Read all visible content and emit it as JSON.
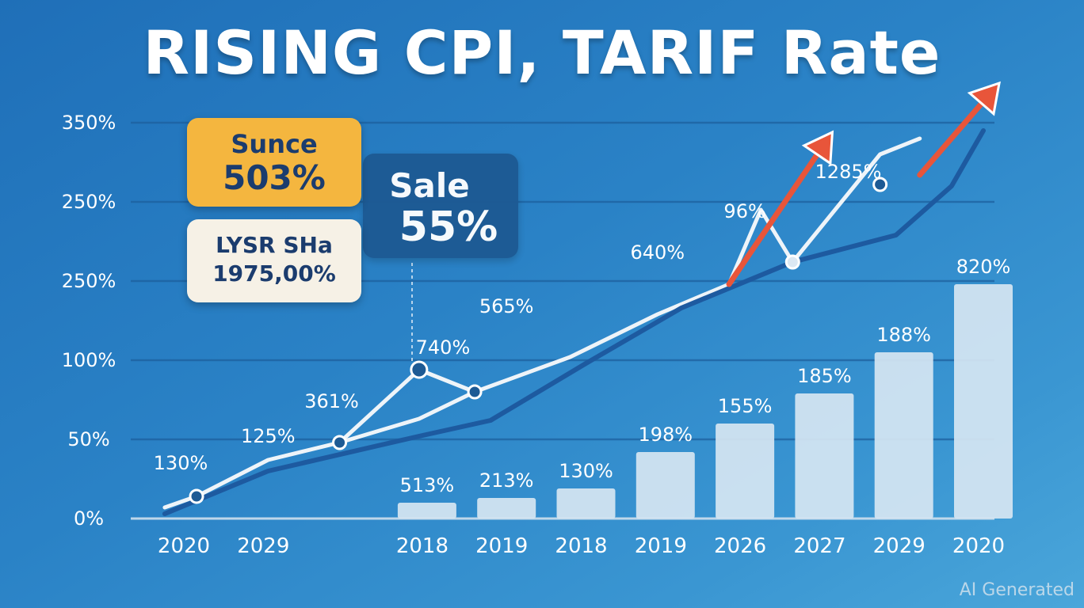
{
  "title": "RISING CPI, TARIF Rate",
  "callouts": [
    {
      "line1": "Sunce",
      "line2": "503%"
    },
    {
      "line1": "Sale",
      "line2": "55%"
    },
    {
      "line1": "LYSR SHa",
      "line2": "1975,00%"
    }
  ],
  "watermark": "AI Generated",
  "colors": {
    "background": "#2a82c6",
    "bars": "#d6e6f2",
    "white_line": "#eef4f9",
    "dark_line": "#1d5aa0",
    "red_arrow": "#e8553a",
    "callout_yellow": "#f4b63f",
    "callout_navy": "#1d5a94",
    "callout_cream": "#f6f1e6"
  },
  "chart_data": {
    "type": "bar",
    "title": "RISING CPI, TARIF Rate",
    "y_tick_labels": [
      "0%",
      "50%",
      "100%",
      "250%",
      "250%",
      "350%"
    ],
    "categories": [
      "2020",
      "2029",
      "",
      "2018",
      "2019",
      "2018",
      "2019",
      "2026",
      "2027",
      "2029",
      "2020"
    ],
    "bars": [
      {
        "category_index": 3,
        "label": "513%",
        "value": 10
      },
      {
        "category_index": 4,
        "label": "213%",
        "value": 13
      },
      {
        "category_index": 5,
        "label": "130%",
        "value": 19
      },
      {
        "category_index": 6,
        "label": "198%",
        "value": 42
      },
      {
        "category_index": 7,
        "label": "155%",
        "value": 60
      },
      {
        "category_index": 8,
        "label": "185%",
        "value": 79
      },
      {
        "category_index": 9,
        "label": "188%",
        "value": 105
      },
      {
        "category_index": 10,
        "label": "820%",
        "value": 148
      }
    ],
    "lines": [
      {
        "color_key": "white_line",
        "points": [
          {
            "x": -0.3,
            "y": 7
          },
          {
            "x": 0.1,
            "y": 14
          },
          {
            "x": 1,
            "y": 37
          },
          {
            "x": 1.9,
            "y": 48
          },
          {
            "x": 2.9,
            "y": 63
          },
          {
            "x": 3.6,
            "y": 80
          },
          {
            "x": 4.8,
            "y": 102
          },
          {
            "x": 5.9,
            "y": 129
          },
          {
            "x": 6.8,
            "y": 148
          }
        ]
      },
      {
        "color_key": "dark_line",
        "points": [
          {
            "x": -0.3,
            "y": 3
          },
          {
            "x": 1,
            "y": 30
          },
          {
            "x": 2.9,
            "y": 52
          },
          {
            "x": 3.8,
            "y": 62
          },
          {
            "x": 5,
            "y": 98
          },
          {
            "x": 6.2,
            "y": 133
          },
          {
            "x": 7.6,
            "y": 162
          },
          {
            "x": 8.9,
            "y": 179
          },
          {
            "x": 9.6,
            "y": 210
          },
          {
            "x": 10,
            "y": 245
          }
        ]
      },
      {
        "color_key": "white_line",
        "points": [
          {
            "x": 1.9,
            "y": 48
          },
          {
            "x": 2.9,
            "y": 94
          },
          {
            "x": 3.6,
            "y": 80
          }
        ]
      },
      {
        "color_key": "white_line",
        "points": [
          {
            "x": 6.8,
            "y": 148
          },
          {
            "x": 7.2,
            "y": 195
          },
          {
            "x": 7.6,
            "y": 162
          },
          {
            "x": 8.7,
            "y": 230
          },
          {
            "x": 9.2,
            "y": 240
          }
        ]
      }
    ],
    "markers": [
      {
        "x": 0.1,
        "y": 14,
        "size": "small"
      },
      {
        "x": 1.9,
        "y": 48,
        "size": "small"
      },
      {
        "x": 2.9,
        "y": 94,
        "size": "large"
      },
      {
        "x": 3.6,
        "y": 80,
        "size": "small"
      },
      {
        "x": 7.6,
        "y": 162,
        "size": "light"
      },
      {
        "x": 8.7,
        "y": 211,
        "size": "small"
      }
    ],
    "arrows": [
      {
        "from": {
          "x": 6.8,
          "y": 148
        },
        "to": {
          "x": 8.1,
          "y": 244
        }
      },
      {
        "from": {
          "x": 9.2,
          "y": 217
        },
        "to": {
          "x": 10.2,
          "y": 275
        }
      }
    ],
    "point_labels": [
      {
        "x": -0.1,
        "y": 31,
        "text": "130%"
      },
      {
        "x": 1.0,
        "y": 48,
        "text": "125%"
      },
      {
        "x": 1.8,
        "y": 70,
        "text": "361%"
      },
      {
        "x": 3.2,
        "y": 104,
        "text": "740%"
      },
      {
        "x": 4.0,
        "y": 130,
        "text": "565%"
      },
      {
        "x": 5.9,
        "y": 164,
        "text": "640%"
      },
      {
        "x": 7.0,
        "y": 190,
        "text": "96%"
      },
      {
        "x": 8.3,
        "y": 215,
        "text": "1285%"
      }
    ],
    "grid": true
  }
}
